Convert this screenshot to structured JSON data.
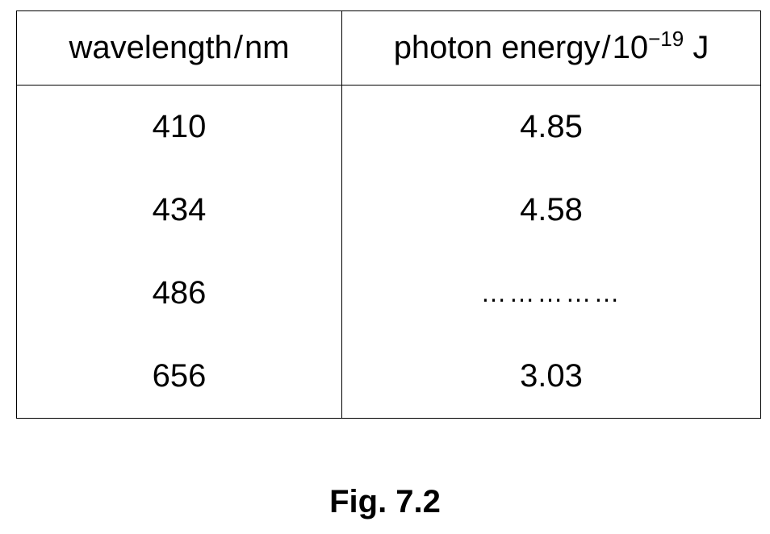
{
  "table": {
    "headers": {
      "wavelength": {
        "quantity": "wavelength",
        "slash": "/",
        "unit": "nm"
      },
      "energy": {
        "quantity": "photon energy",
        "slash": "/",
        "unit_base": "10",
        "unit_exponent": "−19",
        "unit_suffix": "J"
      }
    },
    "rows": [
      {
        "wavelength": "410",
        "energy": "4.85"
      },
      {
        "wavelength": "434",
        "energy": "4.58"
      },
      {
        "wavelength": "486",
        "energy": "……………"
      },
      {
        "wavelength": "656",
        "energy": "3.03"
      }
    ]
  },
  "caption": "Fig. 7.2"
}
